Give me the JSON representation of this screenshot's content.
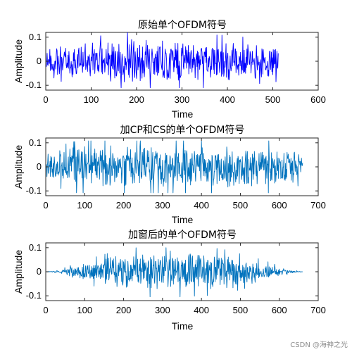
{
  "watermark": "CSDN @海神之光",
  "chart_data": [
    {
      "type": "line",
      "title": "原始单个OFDM符号",
      "xlabel": "Time",
      "ylabel": "Amplitude",
      "xlim": [
        0,
        600
      ],
      "ylim": [
        -0.12,
        0.12
      ],
      "xticks": [
        0,
        100,
        200,
        300,
        400,
        500,
        600
      ],
      "yticks": [
        -0.1,
        0,
        0.1
      ],
      "ytick_labels": [
        "-0.1",
        "0",
        "0.1"
      ],
      "grid": false,
      "legend": "none",
      "color": "#0000ff",
      "series": [
        {
          "x": [
            1,
            512
          ],
          "envelope": [
            [
              0,
              0.07
            ],
            [
              60,
              0.07
            ],
            [
              160,
              0.1
            ],
            [
              400,
              0.09
            ],
            [
              512,
              0.07
            ]
          ],
          "min": -0.11,
          "max": 0.12
        }
      ]
    },
    {
      "type": "line",
      "title": "加CP和CS的单个OFDM符号",
      "xlabel": "Time",
      "ylabel": "Amplitude",
      "xlim": [
        0,
        700
      ],
      "ylim": [
        -0.12,
        0.12
      ],
      "xticks": [
        0,
        100,
        200,
        300,
        400,
        500,
        600,
        700
      ],
      "yticks": [
        -0.1,
        0,
        0.1
      ],
      "ytick_labels": [
        "-0.1",
        "0",
        "0.1"
      ],
      "grid": false,
      "legend": "none",
      "color": "#0072bd",
      "series": [
        {
          "x": [
            1,
            660
          ],
          "envelope": [
            [
              0,
              0.06
            ],
            [
              80,
              0.09
            ],
            [
              300,
              0.09
            ],
            [
              600,
              0.09
            ],
            [
              660,
              0.06
            ]
          ],
          "min": -0.11,
          "max": 0.11
        }
      ]
    },
    {
      "type": "line",
      "title": "加窗后的单个OFDM符号",
      "xlabel": "Time",
      "ylabel": "Amplitude",
      "xlim": [
        0,
        700
      ],
      "ylim": [
        -0.12,
        0.12
      ],
      "xticks": [
        0,
        100,
        200,
        300,
        400,
        500,
        600,
        700
      ],
      "yticks": [
        -0.1,
        0,
        0.1
      ],
      "ytick_labels": [
        "-0.1",
        "0",
        "0.1"
      ],
      "grid": false,
      "legend": "none",
      "color": "#0072bd",
      "series": [
        {
          "x": [
            1,
            660
          ],
          "envelope": [
            [
              0,
              0.0
            ],
            [
              30,
              0.005
            ],
            [
              100,
              0.04
            ],
            [
              200,
              0.08
            ],
            [
              300,
              0.09
            ],
            [
              450,
              0.08
            ],
            [
              560,
              0.04
            ],
            [
              620,
              0.01
            ],
            [
              660,
              0.0
            ]
          ],
          "min": -0.11,
          "max": 0.1
        }
      ]
    }
  ]
}
